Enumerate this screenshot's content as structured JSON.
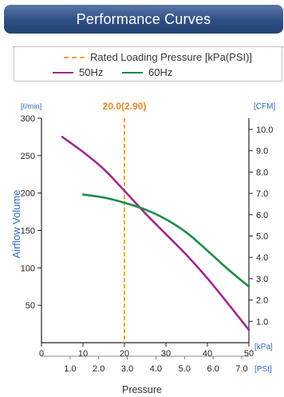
{
  "header": {
    "title": "Performance Curves"
  },
  "legend": {
    "rated_label": "Rated Loading Pressure [kPa(PSI)]",
    "series_50": "50Hz",
    "series_60": "60Hz"
  },
  "colors": {
    "header_bg": "#2e4f85",
    "rated_line": "#f2a12a",
    "series_50": "#a0288c",
    "series_60": "#1d8b47",
    "axis_blue": "#2d6cb5"
  },
  "chart_data": {
    "type": "line",
    "xlabel": "Pressure",
    "ylabel": "Airflow Volume",
    "y_unit_left": "[ℓ/min]",
    "y_unit_right": "[CFM]",
    "x_unit_kpa": "[kPa]",
    "x_unit_psi": "[PSI]",
    "xlim": [
      0,
      50
    ],
    "ylim": [
      0,
      300
    ],
    "x_ticks": [
      "0",
      "10",
      "20",
      "30",
      "40",
      "50"
    ],
    "y_ticks_left": [
      "50",
      "100",
      "150",
      "200",
      "250",
      "300"
    ],
    "y_ticks_right": [
      "1.0",
      "2.0",
      "3.0",
      "4.0",
      "5.0",
      "6.0",
      "7.0",
      "8.0",
      "9.0",
      "10.0"
    ],
    "psi_ticks": [
      "1.0",
      "2.0",
      "3.0",
      "4.0",
      "5.0",
      "6.0",
      "7.0"
    ],
    "rated": {
      "label": "20.0(2.90)",
      "x": 20
    },
    "series": [
      {
        "name": "50Hz",
        "x": [
          5,
          10,
          15,
          20,
          25,
          30,
          35,
          40,
          45,
          50
        ],
        "values": [
          275,
          255,
          232,
          203,
          173,
          145,
          117,
          86,
          52,
          17
        ]
      },
      {
        "name": "60Hz",
        "x": [
          10,
          15,
          20,
          25,
          30,
          35,
          40,
          45,
          50
        ],
        "values": [
          198,
          194,
          187,
          178,
          165,
          147,
          123,
          98,
          75
        ]
      }
    ]
  }
}
